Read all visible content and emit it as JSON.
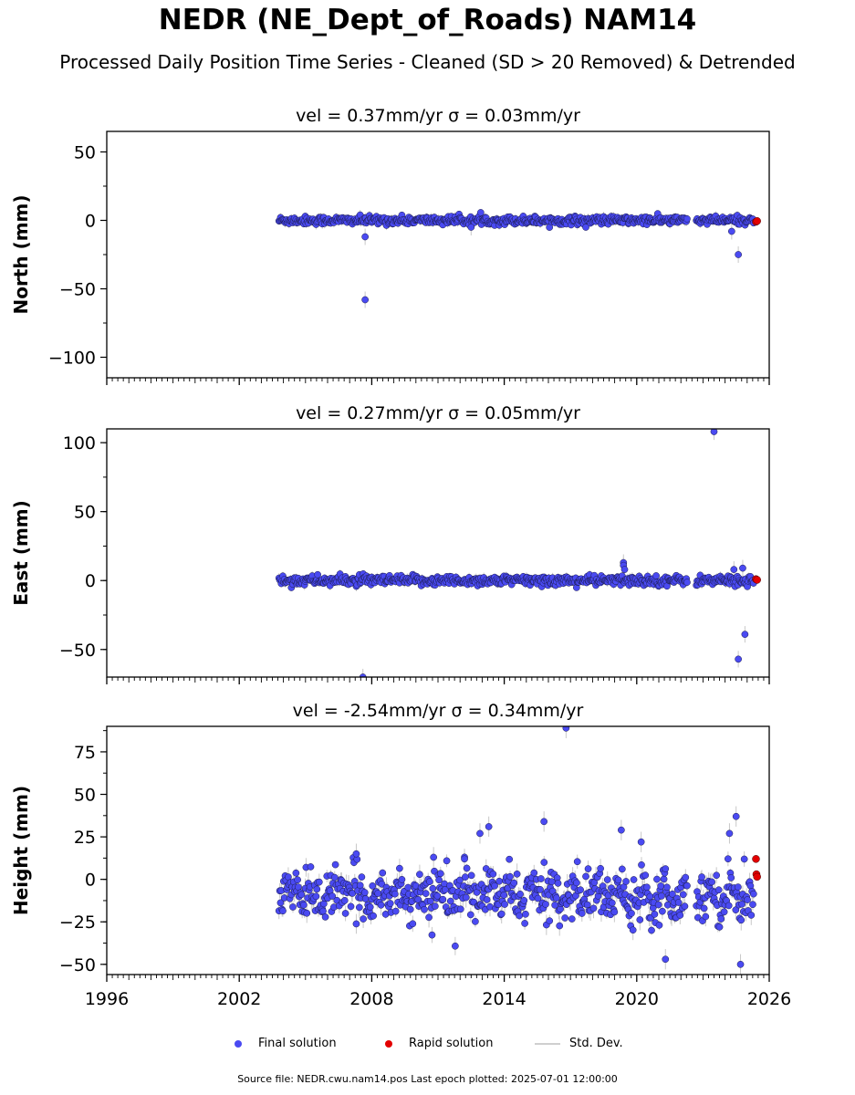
{
  "title": "NEDR (NE_Dept_of_Roads) NAM14",
  "subtitle": "Processed Daily Position Time Series - Cleaned (SD > 20 Removed) & Detrended",
  "legend": {
    "final": "Final solution",
    "rapid": "Rapid solution",
    "sd": "Std. Dev."
  },
  "footer": "Source file: NEDR.cwu.nam14.pos  Last epoch plotted: 2025-07-01 12:00:00",
  "colors": {
    "final": "#4a4af2",
    "rapid": "#e30000",
    "sd": "#c8c8c8"
  },
  "chart_data": [
    {
      "type": "scatter",
      "title": "vel = 0.37mm/yr   σ = 0.03mm/yr",
      "ylabel": "North (mm)",
      "xlim": [
        1996,
        2026
      ],
      "ylim": [
        -115,
        65
      ],
      "yticks": [
        50,
        0,
        -50,
        -100
      ],
      "data_span": [
        2003.8,
        2025.3
      ],
      "gap": [
        2022.3,
        2022.7
      ],
      "scatter": 1.5,
      "offset": 0,
      "outliers": [
        [
          2007.7,
          -58
        ],
        [
          2007.7,
          -12
        ],
        [
          2024.6,
          -25
        ],
        [
          2024.3,
          -8
        ],
        [
          2012.5,
          -5
        ]
      ],
      "rapid": [
        [
          2025.4,
          -1
        ],
        [
          2025.45,
          -0.5
        ]
      ]
    },
    {
      "type": "scatter",
      "title": "vel = 0.27mm/yr   σ = 0.05mm/yr",
      "ylabel": "East (mm)",
      "xlim": [
        1996,
        2026
      ],
      "ylim": [
        -70,
        110
      ],
      "yticks": [
        100,
        50,
        0,
        -50
      ],
      "data_span": [
        2003.8,
        2025.3
      ],
      "gap": [
        2022.3,
        2022.7
      ],
      "scatter": 1.8,
      "offset": 0,
      "outliers": [
        [
          2023.5,
          108
        ],
        [
          2007.6,
          -70
        ],
        [
          2024.9,
          -39
        ],
        [
          2024.6,
          -57
        ],
        [
          2019.4,
          13
        ],
        [
          2019.4,
          11
        ],
        [
          2019.45,
          8
        ],
        [
          2024.4,
          8
        ],
        [
          2024.8,
          9
        ]
      ],
      "rapid": [
        [
          2025.4,
          1
        ],
        [
          2025.45,
          0.5
        ]
      ]
    },
    {
      "type": "scatter",
      "title": "vel = -2.54mm/yr   σ = 0.34mm/yr",
      "ylabel": "Height (mm)",
      "xlim": [
        1996,
        2026
      ],
      "ylim": [
        -56,
        90
      ],
      "yticks": [
        75,
        50,
        25,
        0,
        -25,
        -50
      ],
      "xticks": [
        1996,
        2002,
        2008,
        2014,
        2020,
        2026
      ],
      "data_span": [
        2003.8,
        2025.3
      ],
      "gap": [
        2022.3,
        2022.7
      ],
      "scatter": 7,
      "offset": -9,
      "outliers": [
        [
          2016.8,
          89
        ],
        [
          2024.5,
          37
        ],
        [
          2015.8,
          34
        ],
        [
          2013.3,
          31
        ],
        [
          2012.9,
          27
        ],
        [
          2019.3,
          29
        ],
        [
          2020.2,
          22
        ],
        [
          2021.3,
          -47
        ],
        [
          2024.7,
          -50
        ],
        [
          2024.2,
          27
        ],
        [
          2007.3,
          15
        ],
        [
          2010.8,
          13
        ],
        [
          2012.2,
          12
        ]
      ],
      "rapid": [
        [
          2025.4,
          12
        ],
        [
          2025.42,
          3
        ],
        [
          2025.45,
          1.5
        ]
      ]
    }
  ]
}
